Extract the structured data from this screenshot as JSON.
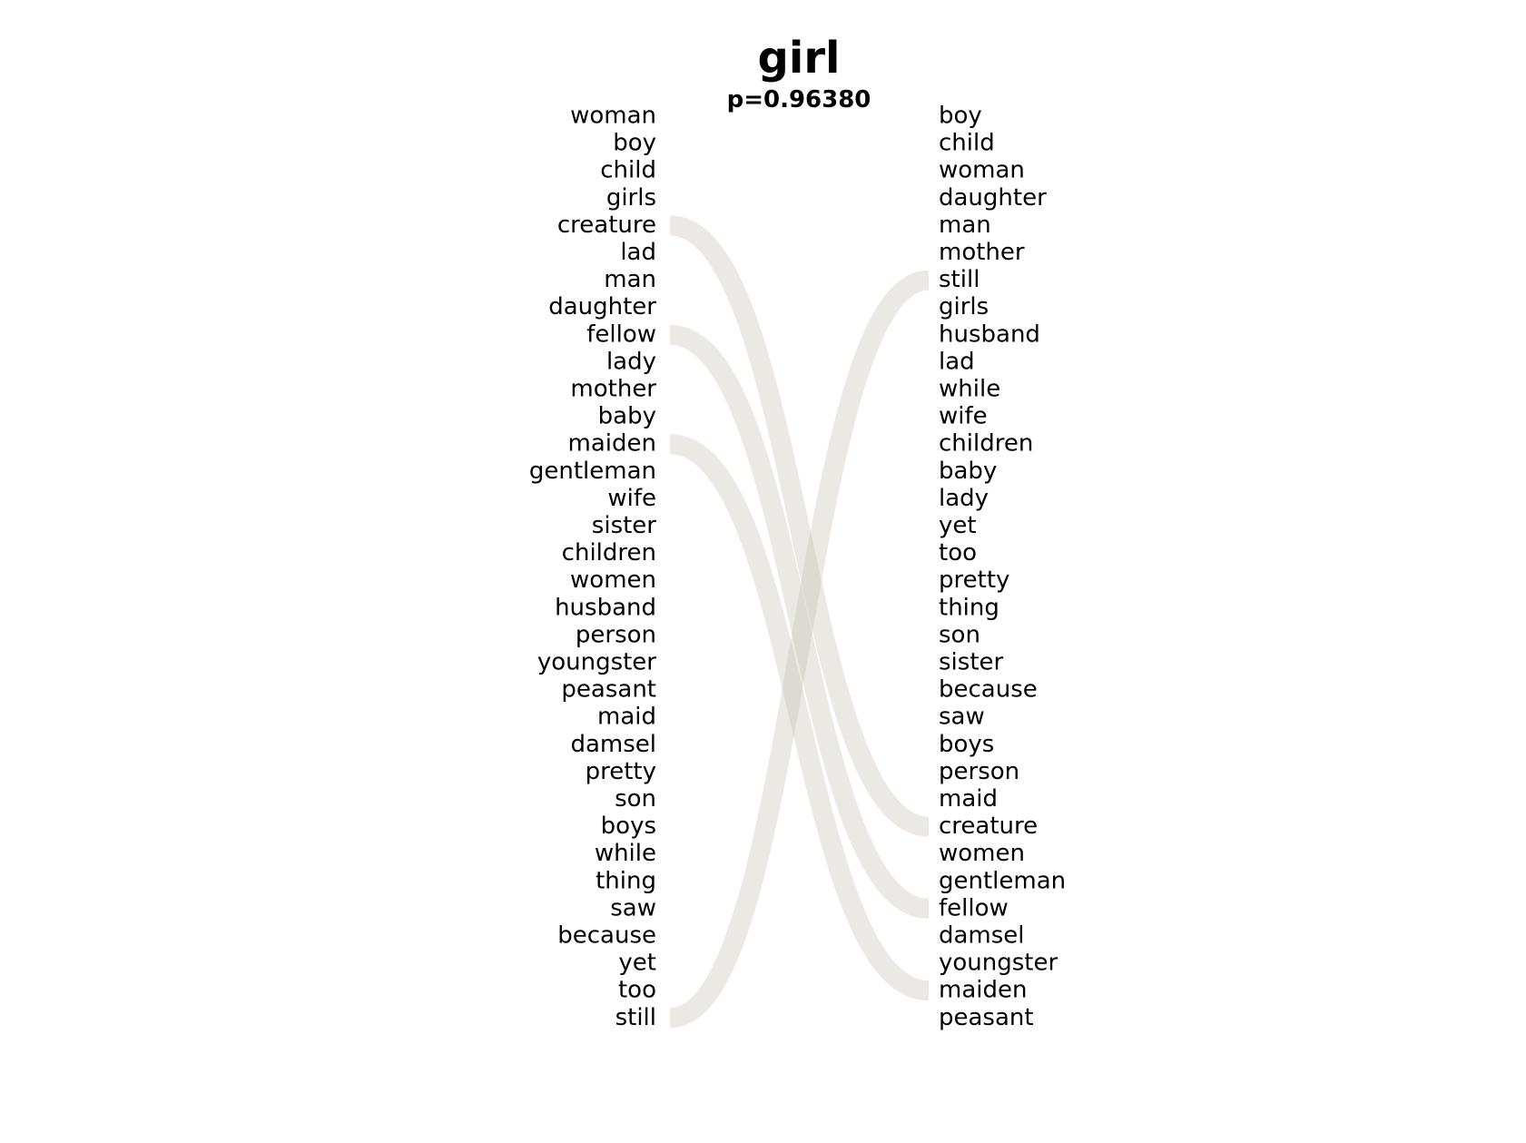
{
  "title": "girl",
  "subtitle": "p=0.96380",
  "left_words": [
    "woman",
    "boy",
    "child",
    "girls",
    "creature",
    "lad",
    "man",
    "daughter",
    "fellow",
    "lady",
    "mother",
    "baby",
    "maiden",
    "gentleman",
    "wife",
    "sister",
    "children",
    "women",
    "husband",
    "person",
    "youngster",
    "peasant",
    "maid",
    "damsel",
    "pretty",
    "son",
    "boys",
    "while",
    "thing",
    "saw",
    "because",
    "yet",
    "too",
    "still"
  ],
  "right_words": [
    "boy",
    "child",
    "woman",
    "daughter",
    "man",
    "mother",
    "still",
    "girls",
    "husband",
    "lad",
    "while",
    "wife",
    "children",
    "baby",
    "lady",
    "yet",
    "too",
    "pretty",
    "thing",
    "son",
    "sister",
    "because",
    "saw",
    "boys",
    "person",
    "maid",
    "creature",
    "women",
    "gentleman",
    "fellow",
    "damsel",
    "youngster",
    "maiden",
    "peasant"
  ],
  "links": [
    {
      "from": "creature",
      "to": "creature",
      "color": "#e8a0a0",
      "opacity": 0.18
    },
    {
      "from": "fellow",
      "to": "fellow",
      "color": "#e8a0a0",
      "opacity": 0.18
    },
    {
      "from": "maiden",
      "to": "maiden",
      "color": "#e8a0a0",
      "opacity": 0.18
    },
    {
      "from": "still",
      "to": "still",
      "color": "#e8a0a0",
      "opacity": 0.18
    },
    {
      "from": "still",
      "to": "still",
      "color": "#a0d0b0",
      "opacity": 0.16,
      "side": "right"
    },
    {
      "from": "creature",
      "to": "creature",
      "color": "#a0d0b0",
      "opacity": 0.16,
      "side": "right"
    },
    {
      "from": "fellow",
      "to": "fellow",
      "color": "#a0d0b0",
      "opacity": 0.16,
      "side": "right"
    },
    {
      "from": "maiden",
      "to": "maiden",
      "color": "#a0d0b0",
      "opacity": 0.16,
      "side": "right"
    }
  ]
}
